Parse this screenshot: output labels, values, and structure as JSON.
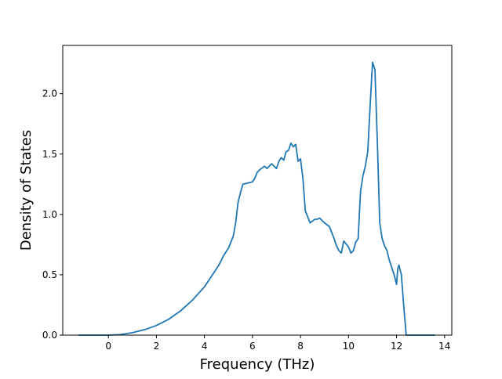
{
  "chart_data": {
    "type": "line",
    "title": "",
    "xlabel": "Frequency (THz)",
    "ylabel": "Density of States",
    "xlim": [
      -1.9,
      14.3
    ],
    "ylim": [
      0,
      2.4
    ],
    "grid": false,
    "xticks": [
      0,
      2,
      4,
      6,
      8,
      10,
      12,
      14
    ],
    "yticks": [
      0.0,
      0.5,
      1.0,
      1.5,
      2.0
    ],
    "xtick_labels": [
      "0",
      "2",
      "4",
      "6",
      "8",
      "10",
      "12",
      "14"
    ],
    "ytick_labels": [
      "0.0",
      "0.5",
      "1.0",
      "1.5",
      "2.0"
    ],
    "line_color": "#1f77b4",
    "series": [
      {
        "x": [
          -1.25,
          -0.5,
          0.0,
          0.5,
          1.0,
          1.5,
          2.0,
          2.5,
          3.0,
          3.5,
          4.0,
          4.3,
          4.6,
          4.8,
          5.0,
          5.2,
          5.3,
          5.4,
          5.5,
          5.6,
          5.8,
          6.0,
          6.1,
          6.2,
          6.3,
          6.5,
          6.6,
          6.8,
          7.0,
          7.1,
          7.2,
          7.3,
          7.4,
          7.5,
          7.6,
          7.7,
          7.8,
          7.9,
          8.0,
          8.1,
          8.2,
          8.4,
          8.6,
          8.7,
          8.8,
          9.0,
          9.2,
          9.4,
          9.5,
          9.6,
          9.7,
          9.8,
          10.0,
          10.1,
          10.2,
          10.3,
          10.4,
          10.5,
          10.6,
          10.7,
          10.8,
          10.9,
          11.0,
          11.1,
          11.2,
          11.3,
          11.4,
          11.5,
          11.6,
          11.7,
          11.8,
          11.9,
          12.0,
          12.05,
          12.1,
          12.2,
          12.3,
          12.35,
          12.4,
          12.5,
          13.0,
          13.6
        ],
        "y": [
          0.0,
          0.0,
          0.0,
          0.005,
          0.02,
          0.045,
          0.08,
          0.13,
          0.2,
          0.29,
          0.4,
          0.49,
          0.58,
          0.66,
          0.72,
          0.82,
          0.93,
          1.1,
          1.18,
          1.25,
          1.26,
          1.27,
          1.3,
          1.35,
          1.37,
          1.4,
          1.38,
          1.42,
          1.38,
          1.44,
          1.47,
          1.45,
          1.52,
          1.53,
          1.59,
          1.56,
          1.58,
          1.44,
          1.46,
          1.3,
          1.03,
          0.93,
          0.96,
          0.96,
          0.97,
          0.93,
          0.9,
          0.8,
          0.74,
          0.7,
          0.68,
          0.78,
          0.73,
          0.68,
          0.7,
          0.77,
          0.8,
          1.19,
          1.32,
          1.4,
          1.52,
          1.9,
          2.26,
          2.2,
          1.6,
          0.93,
          0.8,
          0.74,
          0.7,
          0.62,
          0.56,
          0.5,
          0.42,
          0.55,
          0.58,
          0.5,
          0.24,
          0.12,
          0.0,
          0.0,
          0.0,
          0.0
        ]
      }
    ]
  }
}
